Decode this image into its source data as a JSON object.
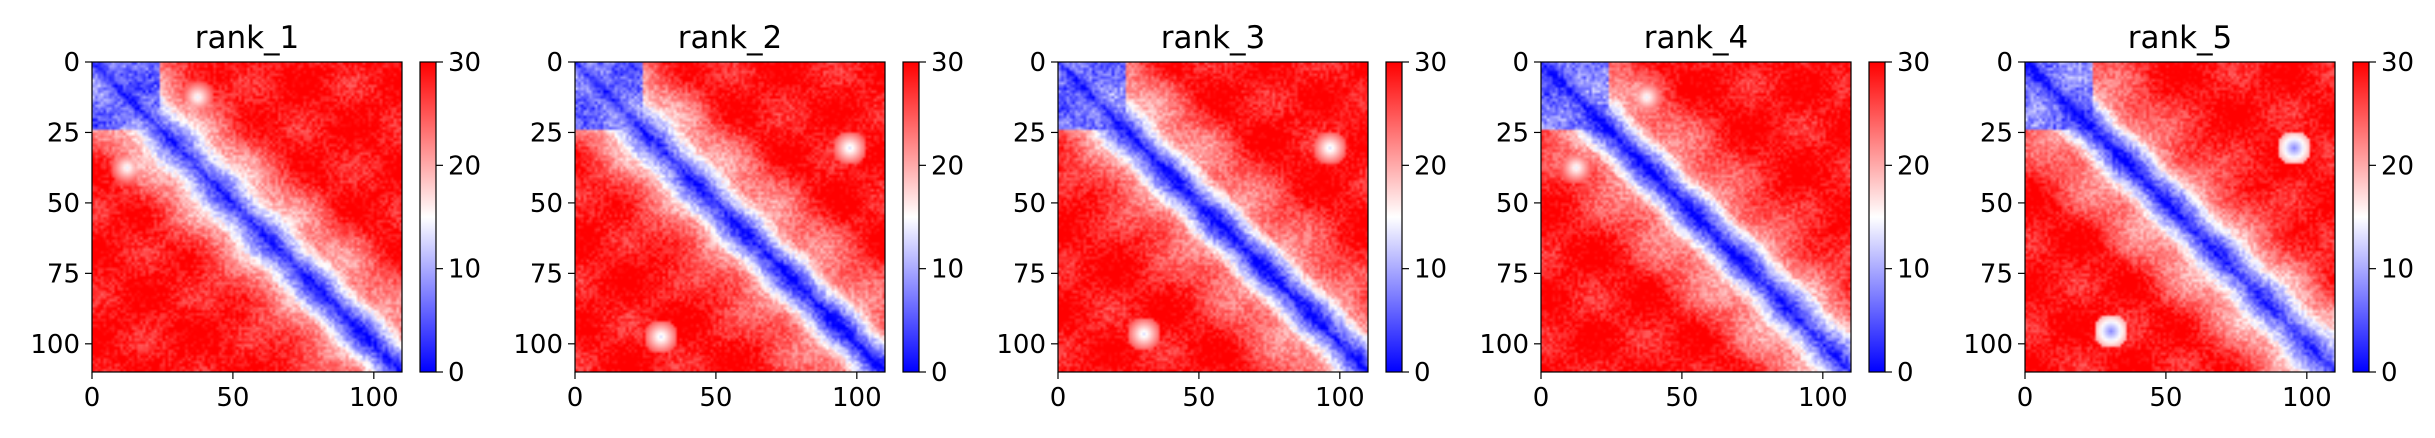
{
  "figure": {
    "title": ""
  },
  "chart_data": [
    {
      "type": "heatmap",
      "title": "rank_1",
      "size": 110,
      "xticks": [
        0,
        50,
        100
      ],
      "yticks": [
        0,
        25,
        50,
        75,
        100
      ],
      "colorbar": {
        "min": 0,
        "max": 30,
        "ticks": [
          0,
          10,
          20,
          30
        ]
      },
      "spots": [
        {
          "i": 12,
          "j": 37,
          "d": 14
        }
      ]
    },
    {
      "type": "heatmap",
      "title": "rank_2",
      "size": 110,
      "xticks": [
        0,
        50,
        100
      ],
      "yticks": [
        0,
        25,
        50,
        75,
        100
      ],
      "colorbar": {
        "min": 0,
        "max": 30,
        "ticks": [
          0,
          10,
          20,
          30
        ]
      },
      "spots": [
        {
          "i": 30,
          "j": 97,
          "d": 13
        }
      ]
    },
    {
      "type": "heatmap",
      "title": "rank_3",
      "size": 110,
      "xticks": [
        0,
        50,
        100
      ],
      "yticks": [
        0,
        25,
        50,
        75,
        100
      ],
      "colorbar": {
        "min": 0,
        "max": 30,
        "ticks": [
          0,
          10,
          20,
          30
        ]
      },
      "spots": [
        {
          "i": 30,
          "j": 96,
          "d": 13
        }
      ]
    },
    {
      "type": "heatmap",
      "title": "rank_4",
      "size": 110,
      "xticks": [
        0,
        50,
        100
      ],
      "yticks": [
        0,
        25,
        50,
        75,
        100
      ],
      "colorbar": {
        "min": 0,
        "max": 30,
        "ticks": [
          0,
          10,
          20,
          30
        ]
      },
      "spots": [
        {
          "i": 12,
          "j": 37,
          "d": 14
        }
      ]
    },
    {
      "type": "heatmap",
      "title": "rank_5",
      "size": 110,
      "xticks": [
        0,
        50,
        100
      ],
      "yticks": [
        0,
        25,
        50,
        75,
        100
      ],
      "colorbar": {
        "min": 0,
        "max": 30,
        "ticks": [
          0,
          10,
          20,
          30
        ]
      },
      "spots": [
        {
          "i": 30,
          "j": 95,
          "d": 8
        }
      ]
    }
  ],
  "colormap": {
    "low": "#0000ff",
    "mid": "#ffffff",
    "high": "#ff0000"
  }
}
